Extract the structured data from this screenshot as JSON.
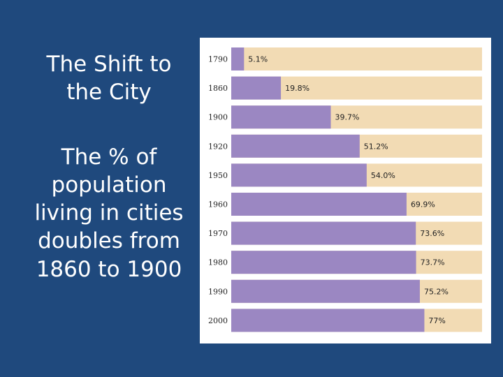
{
  "slide": {
    "title": "The Shift to the City",
    "body": "The % of population living in cities doubles from 1860 to 1900"
  },
  "chart_data": {
    "type": "bar",
    "orientation": "horizontal",
    "categories": [
      "1790",
      "1860",
      "1900",
      "1920",
      "1950",
      "1960",
      "1970",
      "1980",
      "1990",
      "2000"
    ],
    "values": [
      5.1,
      19.8,
      39.7,
      51.2,
      54.0,
      69.9,
      73.6,
      73.7,
      75.2,
      77
    ],
    "value_labels": [
      "5.1%",
      "19.8%",
      "39.7%",
      "51.2%",
      "54.0%",
      "69.9%",
      "73.6%",
      "73.7%",
      "75.2%",
      "77%"
    ],
    "xlim": [
      0,
      100
    ],
    "colors": {
      "bar": "#9b87c2",
      "track": "#f2dbb4"
    },
    "grid": false,
    "legend": "none"
  }
}
